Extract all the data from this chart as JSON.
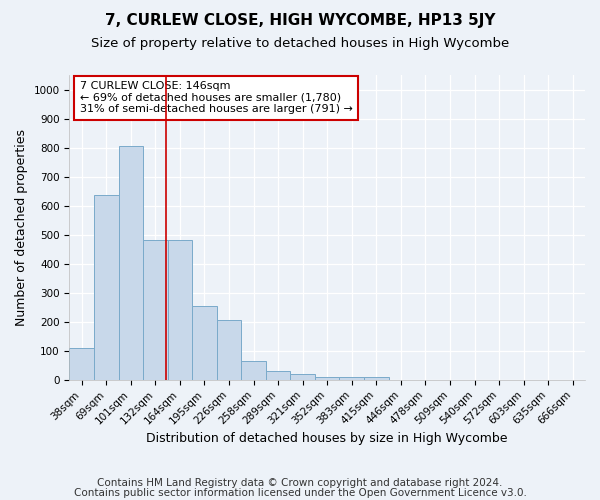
{
  "title": "7, CURLEW CLOSE, HIGH WYCOMBE, HP13 5JY",
  "subtitle": "Size of property relative to detached houses in High Wycombe",
  "xlabel": "Distribution of detached houses by size in High Wycombe",
  "ylabel": "Number of detached properties",
  "bar_labels": [
    "38sqm",
    "69sqm",
    "101sqm",
    "132sqm",
    "164sqm",
    "195sqm",
    "226sqm",
    "258sqm",
    "289sqm",
    "321sqm",
    "352sqm",
    "383sqm",
    "415sqm",
    "446sqm",
    "478sqm",
    "509sqm",
    "540sqm",
    "572sqm",
    "603sqm",
    "635sqm",
    "666sqm"
  ],
  "bar_values": [
    110,
    635,
    805,
    480,
    480,
    255,
    205,
    65,
    30,
    20,
    10,
    10,
    10,
    0,
    0,
    0,
    0,
    0,
    0,
    0,
    0
  ],
  "bar_color": "#c8d8ea",
  "bar_edge_color": "#7aaaca",
  "bar_edge_width": 0.7,
  "vline_color": "#cc0000",
  "vline_linewidth": 1.2,
  "vline_pos": 3.44,
  "annotation_text": "7 CURLEW CLOSE: 146sqm\n← 69% of detached houses are smaller (1,780)\n31% of semi-detached houses are larger (791) →",
  "annotation_box_color": "white",
  "annotation_box_edge_color": "#cc0000",
  "ylim": [
    0,
    1050
  ],
  "yticks": [
    0,
    100,
    200,
    300,
    400,
    500,
    600,
    700,
    800,
    900,
    1000
  ],
  "footnote_line1": "Contains HM Land Registry data © Crown copyright and database right 2024.",
  "footnote_line2": "Contains public sector information licensed under the Open Government Licence v3.0.",
  "bg_color": "#edf2f8",
  "plot_bg_color": "#edf2f8",
  "title_fontsize": 11,
  "subtitle_fontsize": 9.5,
  "axis_label_fontsize": 9,
  "tick_fontsize": 7.5,
  "annotation_fontsize": 8,
  "footnote_fontsize": 7.5
}
